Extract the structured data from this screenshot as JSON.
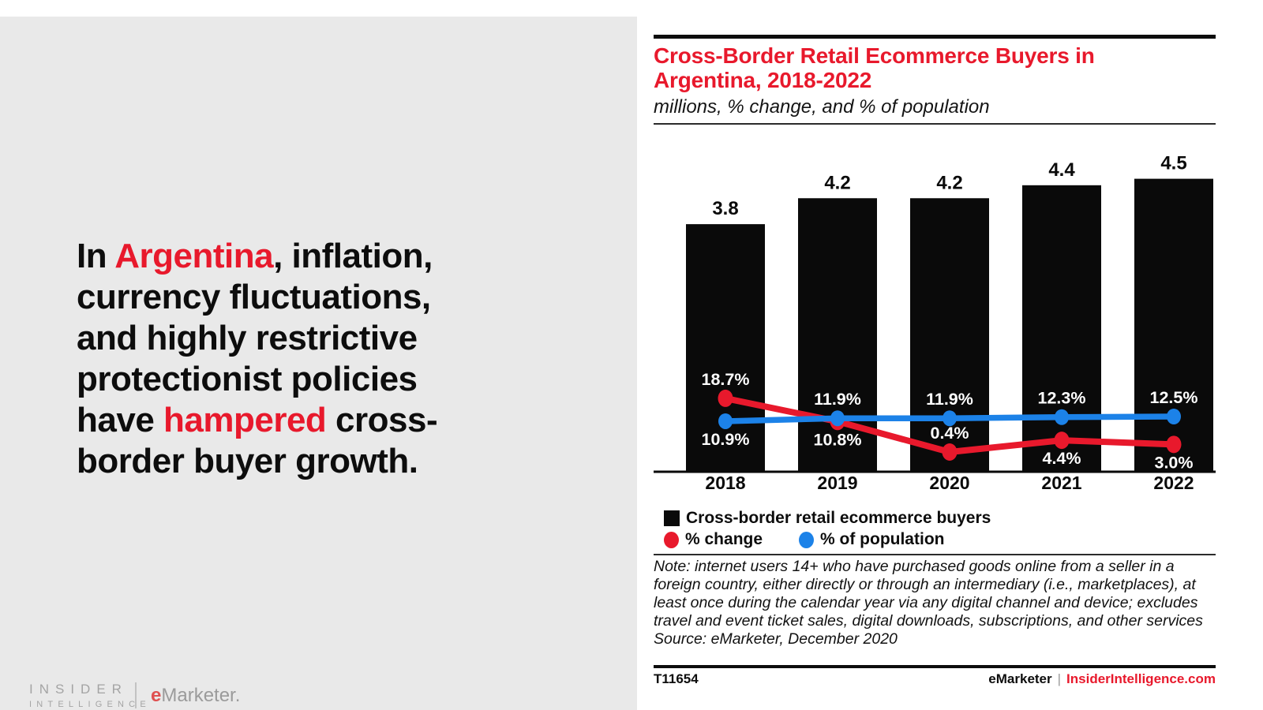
{
  "colors": {
    "accent_red": "#e8192c",
    "line_blue": "#1c82e8",
    "bar_black": "#0a0a0a",
    "panel_gray": "#e9e9e9",
    "logo_gray": "#a4a4a4"
  },
  "panel": {
    "headline_lines": [
      [
        {
          "t": "In ",
          "red": false
        },
        {
          "t": "Argentina",
          "red": true
        },
        {
          "t": ", inflation,",
          "red": false
        }
      ],
      [
        {
          "t": "currency fluctuations,",
          "red": false
        }
      ],
      [
        {
          "t": "and highly restrictive",
          "red": false
        }
      ],
      [
        {
          "t": "protectionist policies",
          "red": false
        }
      ],
      [
        {
          "t": "have ",
          "red": false
        },
        {
          "t": "hampered",
          "red": true
        },
        {
          "t": " cross-",
          "red": false
        }
      ],
      [
        {
          "t": "border buyer growth.",
          "red": false
        }
      ]
    ],
    "logo": {
      "insider": "INSIDER",
      "intelligence": "INTELLIGENCE",
      "emarketer_e": "e",
      "emarketer_rest": "Marketer",
      "emarketer_tm": "."
    }
  },
  "chart": {
    "title_line1": "Cross-Border Retail Ecommerce Buyers in",
    "title_line2": "Argentina, 2018-2022",
    "subtitle": "millions, % change, and % of population",
    "legend": [
      {
        "label": "Cross-border retail ecommerce buyers",
        "marker": "square",
        "color": "#0a0a0a"
      },
      {
        "label": "% change",
        "marker": "dot",
        "color": "#e8192c"
      },
      {
        "label": "% of population",
        "marker": "dot",
        "color": "#1c82e8"
      }
    ],
    "note_lines": [
      "Note: internet users 14+ who have purchased goods online from a seller in a",
      "foreign country, either directly or through an intermediary (i.e., marketplaces), at",
      "least once during the calendar year via any digital channel and device; excludes",
      "travel and event ticket sales, digital downloads, subscriptions, and other services",
      "Source: eMarketer, December 2020"
    ],
    "footer_left": "T11654",
    "footer_brand": "eMarketer",
    "footer_sep": "|",
    "footer_link": "InsiderIntelligence.com"
  },
  "chart_data": {
    "type": "bar+line",
    "title": "Cross-Border Retail Ecommerce Buyers in Argentina, 2018-2022",
    "subtitle": "millions, % change, and % of population",
    "categories": [
      "2018",
      "2019",
      "2020",
      "2021",
      "2022"
    ],
    "series": [
      {
        "name": "Cross-border retail ecommerce buyers",
        "type": "bar",
        "unit": "millions",
        "values": [
          3.8,
          4.2,
          4.2,
          4.4,
          4.5
        ],
        "color": "#0a0a0a"
      },
      {
        "name": "% change",
        "type": "line",
        "unit": "percent",
        "values": [
          18.7,
          10.8,
          0.4,
          4.4,
          3.0
        ],
        "color": "#e8192c",
        "label_positions": [
          "above",
          "below",
          "above",
          "below",
          "below"
        ]
      },
      {
        "name": "% of population",
        "type": "line",
        "unit": "percent",
        "values": [
          10.9,
          11.9,
          11.9,
          12.3,
          12.5
        ],
        "color": "#1c82e8",
        "label_positions": [
          "below",
          "above",
          "above",
          "above",
          "above"
        ]
      }
    ],
    "bar_ylim": [
      0,
      5.1
    ],
    "pct_ylim": [
      0,
      60
    ],
    "grid": false,
    "legend_position": "bottom",
    "bar_label_format": "0.0",
    "pct_label_format": "0.0%"
  }
}
